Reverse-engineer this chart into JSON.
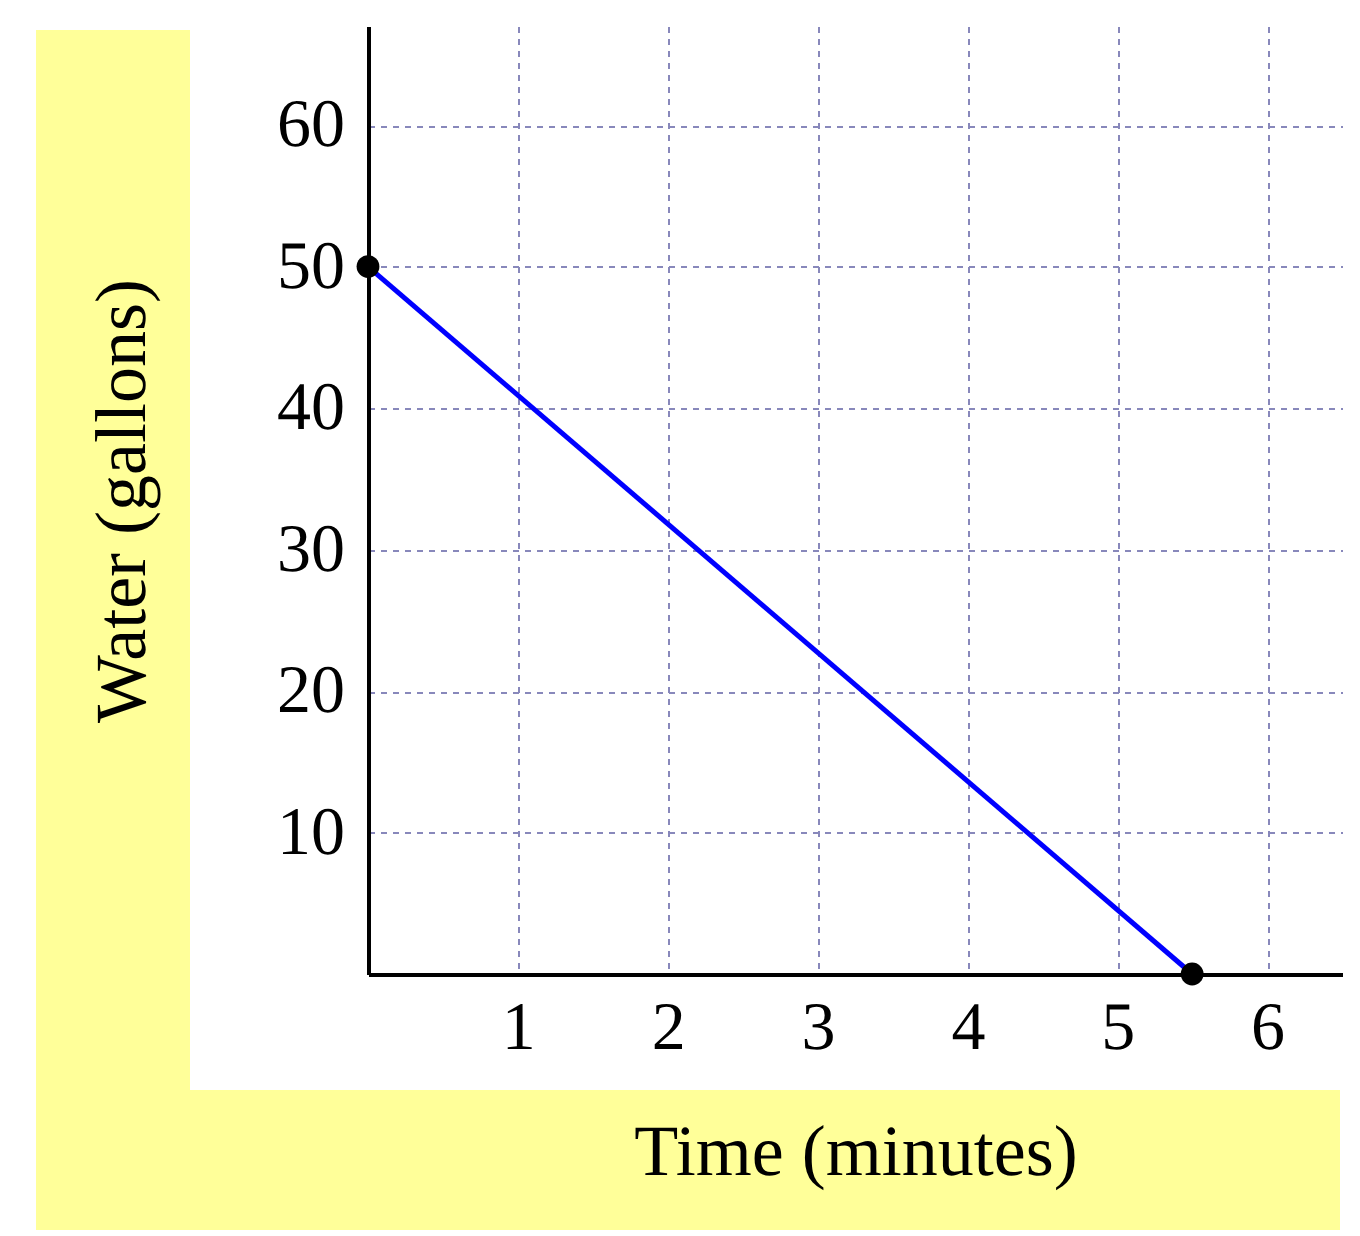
{
  "chart_data": {
    "type": "line",
    "xlabel": "Time (minutes)",
    "ylabel": "Water (gallons)",
    "x": [
      0,
      5.5
    ],
    "series": [
      {
        "color": "#0000ff",
        "values": [
          50,
          0
        ]
      }
    ],
    "xlim": [
      0,
      6.5
    ],
    "ylim": [
      0,
      67
    ],
    "xticks": [
      1,
      2,
      3,
      4,
      5,
      6
    ],
    "yticks": [
      10,
      20,
      30,
      40,
      50,
      60
    ],
    "grid": true,
    "marker": "circle",
    "line_style": "solid"
  }
}
